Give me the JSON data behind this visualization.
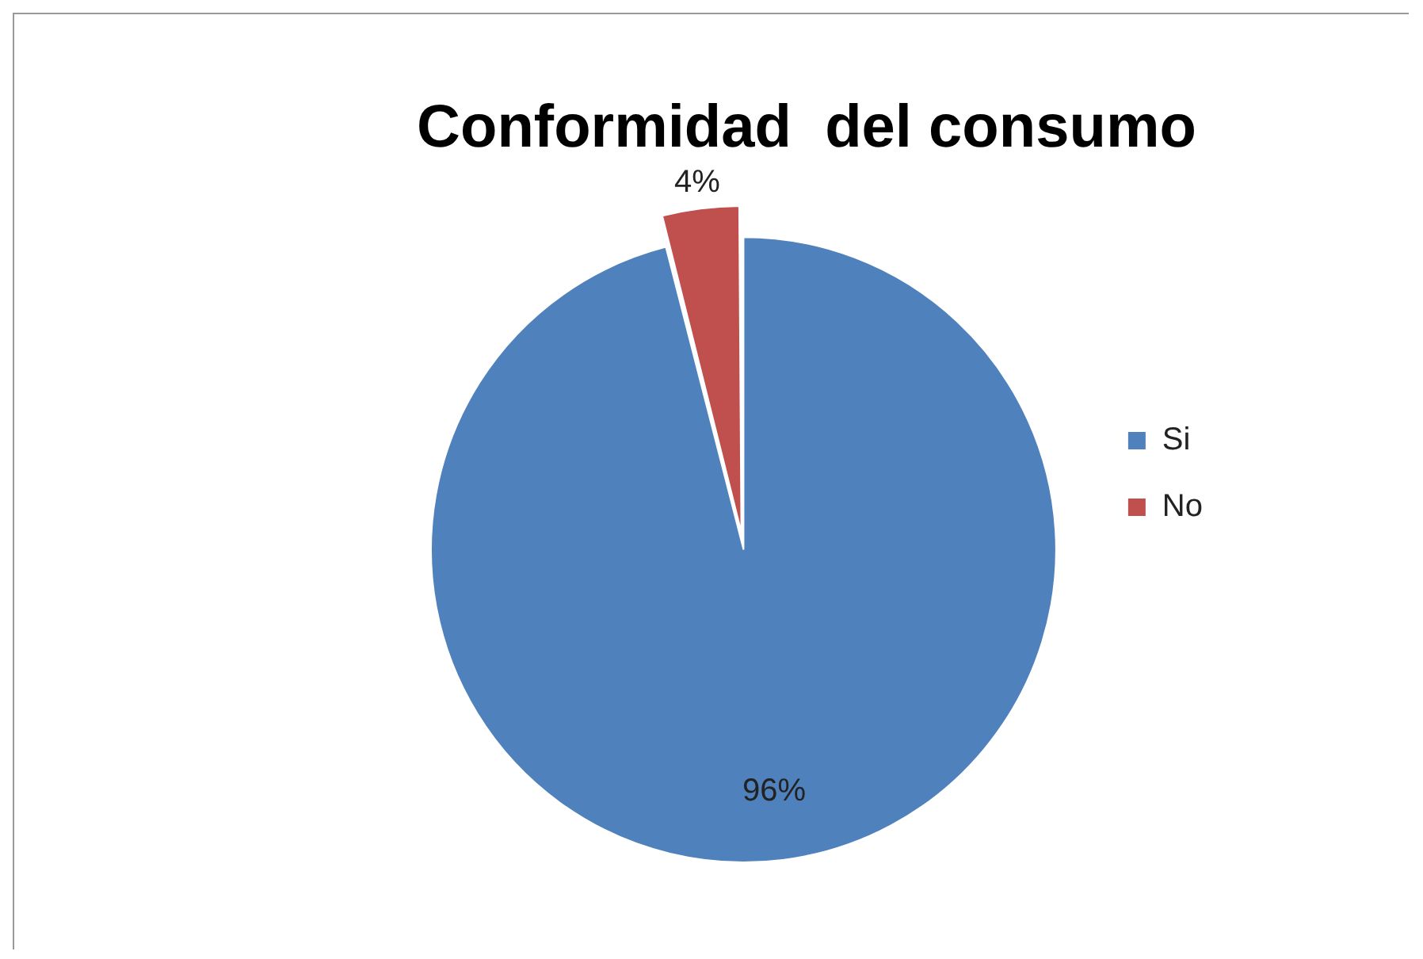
{
  "chart_data": {
    "type": "pie",
    "title": "Conformidad  del consumo",
    "categories": [
      "Si",
      "No"
    ],
    "values": [
      96,
      4
    ],
    "colors": [
      "#4f81bd",
      "#c0504d"
    ],
    "value_labels": [
      "96%",
      "4%"
    ],
    "legend": "right"
  }
}
